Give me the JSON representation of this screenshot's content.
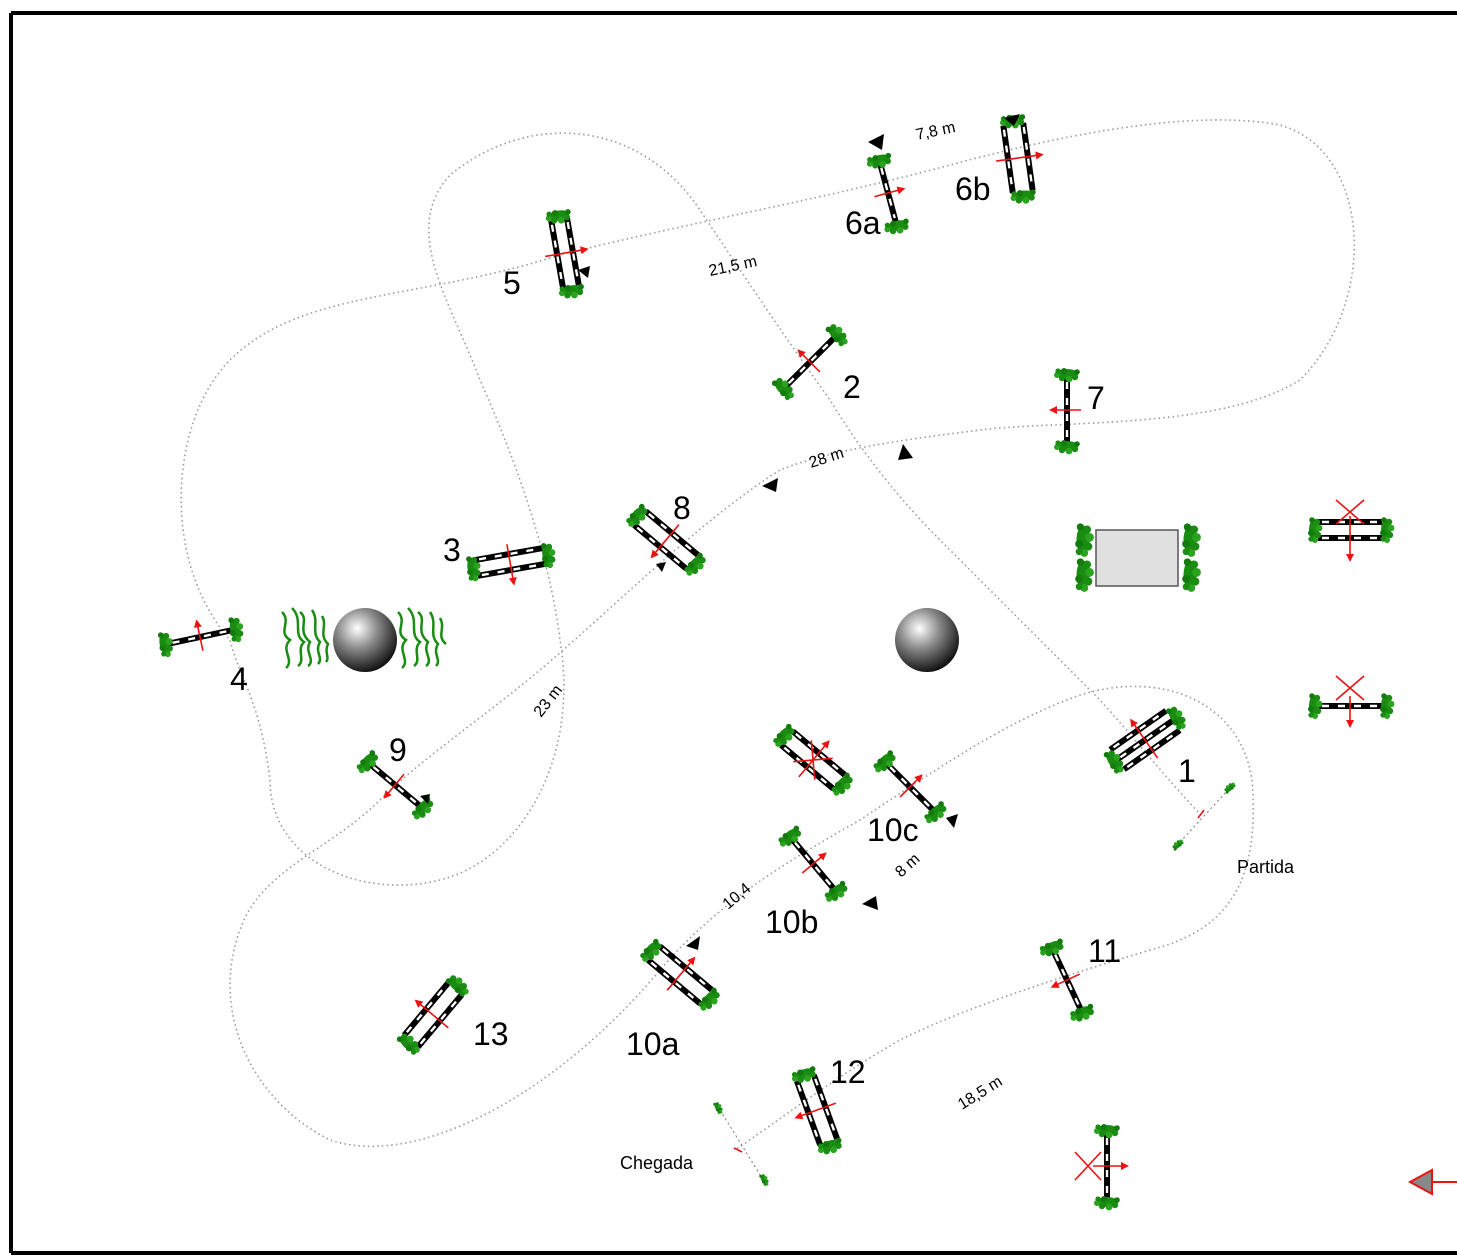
{
  "obstacles": [
    {
      "id": "1",
      "label": "1"
    },
    {
      "id": "2",
      "label": "2"
    },
    {
      "id": "3",
      "label": "3"
    },
    {
      "id": "4",
      "label": "4"
    },
    {
      "id": "5",
      "label": "5"
    },
    {
      "id": "6a",
      "label": "6a"
    },
    {
      "id": "6b",
      "label": "6b"
    },
    {
      "id": "7",
      "label": "7"
    },
    {
      "id": "8",
      "label": "8"
    },
    {
      "id": "9",
      "label": "9"
    },
    {
      "id": "10a",
      "label": "10a"
    },
    {
      "id": "10b",
      "label": "10b"
    },
    {
      "id": "10c",
      "label": "10c"
    },
    {
      "id": "11",
      "label": "11"
    },
    {
      "id": "12",
      "label": "12"
    },
    {
      "id": "13",
      "label": "13"
    }
  ],
  "distances": {
    "d_6a_6b": "7,8 m",
    "d_5_6a": "21,5 m",
    "d_7_8": "28 m",
    "d_3_9": "23 m",
    "d_10a_10b": "10,4",
    "d_10b_10c": "8 m",
    "d_11_12": "18,5 m"
  },
  "labels": {
    "start": "Partida",
    "finish": "Chegada"
  },
  "colors": {
    "shrub_green": "#1a8c12",
    "flag_red": "#e11111",
    "route": "#9a9a9a",
    "pole": "#000000"
  },
  "icons": [
    "shrub-icon",
    "direction-arrow-icon",
    "decorative-ball-icon",
    "water-jump-icon",
    "crossed-out-marker-icon",
    "entrance-arrow-icon"
  ]
}
